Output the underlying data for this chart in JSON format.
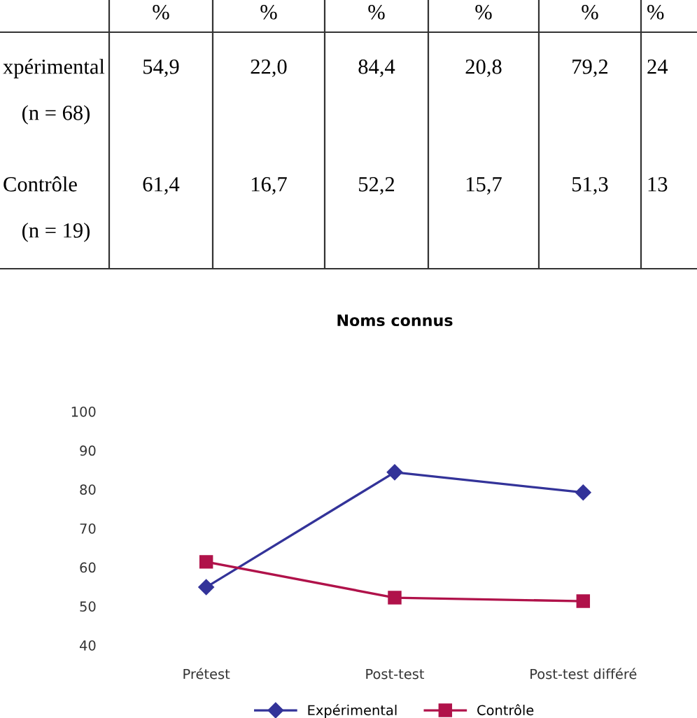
{
  "chart_data": {
    "type": "line",
    "title": "Noms connus",
    "categories": [
      "Prétest",
      "Post-test",
      "Post-test différé"
    ],
    "series": [
      {
        "name": "Expérimental",
        "color": "#333399",
        "values": [
          54.9,
          84.4,
          79.2
        ],
        "marker": "diamond"
      },
      {
        "name": "Contrôle",
        "color": "#b0124a",
        "values": [
          61.4,
          52.2,
          51.3
        ],
        "marker": "square"
      }
    ],
    "ylim": [
      40,
      100
    ],
    "yticks": [
      40,
      50,
      60,
      70,
      80,
      90,
      100
    ],
    "grid": false,
    "legend": "bottom",
    "line_style": "solid",
    "annotations": [
      "%",
      "%",
      "%",
      "%",
      "%",
      "%",
      "xpérimental",
      "(n = 68)",
      "54,9",
      "22,0",
      "84,4",
      "20,8",
      "79,2",
      "24",
      "Contrôle",
      "(n = 19)",
      "61,4",
      "16,7",
      "52,2",
      "15,7",
      "51,3",
      "13"
    ]
  }
}
